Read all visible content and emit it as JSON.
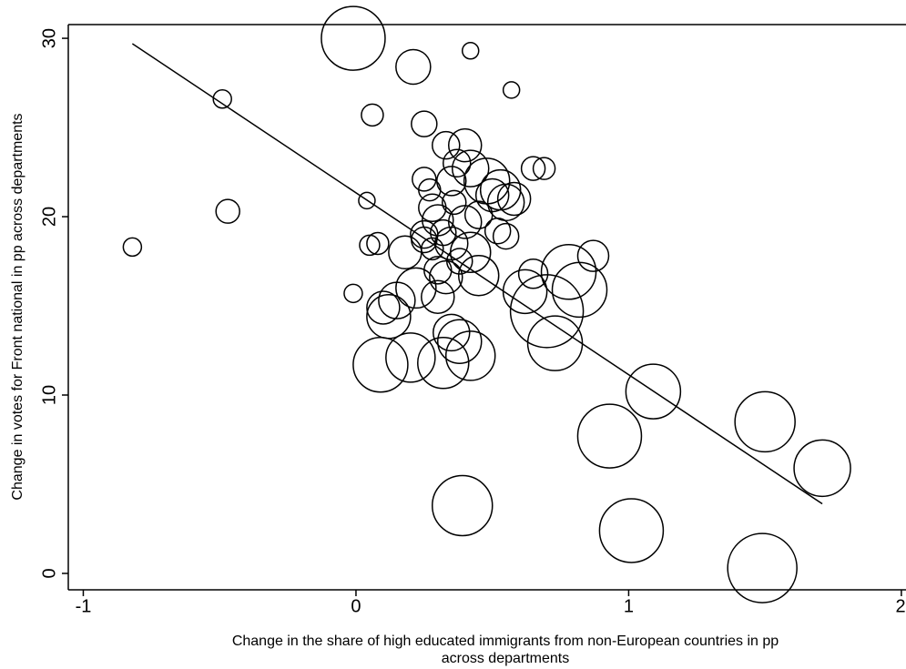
{
  "chart_data": {
    "type": "scatter",
    "xlabel": [
      "Change in the share of high educated immigrants from non-European countries in pp",
      "across departments"
    ],
    "ylabel": "Change in votes for Front national in pp across departments",
    "xlim": [
      -1.055,
      2.017
    ],
    "ylim": [
      -0.92,
      30.77
    ],
    "xticks": [
      -1,
      0,
      1,
      2
    ],
    "yticks": [
      0,
      10,
      20,
      30
    ],
    "color": "#000000",
    "x": [
      -0.82,
      -0.49,
      -0.47,
      -0.01,
      0.21,
      0.42,
      0.57,
      0.06,
      0.25,
      0.04,
      0.05,
      0.08,
      -0.01,
      0.18,
      0.25,
      0.3,
      0.28,
      0.25,
      0.33,
      0.4,
      0.37,
      0.42,
      0.48,
      0.53,
      0.55,
      0.5,
      0.58,
      0.65,
      0.69,
      0.4,
      0.35,
      0.42,
      0.55,
      0.45,
      0.3,
      0.33,
      0.22,
      0.15,
      0.1,
      0.12,
      0.3,
      0.35,
      0.38,
      0.42,
      0.32,
      0.2,
      0.09,
      0.62,
      0.65,
      0.7,
      0.73,
      0.78,
      0.82,
      0.87,
      0.39,
      0.93,
      1.09,
      1.01,
      1.5,
      1.49,
      1.71,
      0.28,
      0.32,
      0.36,
      0.45,
      0.52,
      0.27,
      0.35,
      0.38,
      0.25
    ],
    "values": [
      18.3,
      26.6,
      20.3,
      30.0,
      28.4,
      29.3,
      27.1,
      25.7,
      25.2,
      20.9,
      18.4,
      18.5,
      15.7,
      18.0,
      18.7,
      19.8,
      20.5,
      22.1,
      24.0,
      24.0,
      23.0,
      22.7,
      22.0,
      21.5,
      20.8,
      21.2,
      21.0,
      22.7,
      22.7,
      19.7,
      18.5,
      18.0,
      18.9,
      16.7,
      17.0,
      16.6,
      16.0,
      15.3,
      14.9,
      14.4,
      15.5,
      13.5,
      13.0,
      12.2,
      11.8,
      12.1,
      11.7,
      15.8,
      16.8,
      14.7,
      12.9,
      16.9,
      15.9,
      17.8,
      3.8,
      7.7,
      10.2,
      2.4,
      8.5,
      0.3,
      5.9,
      18.2,
      19.1,
      20.8,
      20.1,
      19.2,
      21.5,
      22.0,
      17.5,
      19.0
    ],
    "sizes": [
      10,
      10,
      13,
      35,
      19,
      9,
      9,
      12,
      14,
      9,
      11,
      12,
      10,
      18,
      14,
      17,
      15,
      13,
      15,
      18,
      15,
      20,
      25,
      22,
      20,
      18,
      18,
      13,
      12,
      18,
      18,
      22,
      14,
      22,
      15,
      18,
      22,
      20,
      18,
      24,
      18,
      20,
      24,
      27,
      28,
      27,
      30,
      24,
      16,
      40,
      30,
      30,
      30,
      17,
      33,
      35,
      30,
      35,
      33,
      38,
      31,
      12,
      14,
      13,
      15,
      14,
      12,
      16,
      14,
      15
    ],
    "fit": {
      "x": [
        -0.82,
        1.71
      ],
      "y": [
        29.7,
        3.9
      ]
    }
  }
}
